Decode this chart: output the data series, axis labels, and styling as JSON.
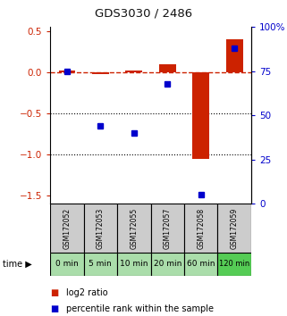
{
  "title": "GDS3030 / 2486",
  "samples": [
    "GSM172052",
    "GSM172053",
    "GSM172055",
    "GSM172057",
    "GSM172058",
    "GSM172059"
  ],
  "time_labels": [
    "0 min",
    "5 min",
    "10 min",
    "20 min",
    "60 min",
    "120 min"
  ],
  "log2_ratio": [
    0.02,
    -0.02,
    0.02,
    0.1,
    -1.05,
    0.4
  ],
  "percentile_rank": [
    75,
    44,
    40,
    68,
    5,
    88
  ],
  "left_ylim": [
    -1.6,
    0.55
  ],
  "right_ylim": [
    0,
    100
  ],
  "left_yticks": [
    0.5,
    0,
    -0.5,
    -1,
    -1.5
  ],
  "right_yticks": [
    100,
    75,
    50,
    25,
    0
  ],
  "hlines": [
    -0.5,
    -1.0
  ],
  "bar_color": "#cc2200",
  "dot_color": "#0000cc",
  "dashed_line_color": "#cc2200",
  "title_color": "#222222",
  "left_axis_color": "#cc2200",
  "right_axis_color": "#0000cc",
  "sample_box_color": "#cccccc",
  "time_box_colors": [
    "#aaddaa",
    "#aaddaa",
    "#aaddaa",
    "#aaddaa",
    "#aaddaa",
    "#55cc55"
  ],
  "legend_red": "log2 ratio",
  "legend_blue": "percentile rank within the sample",
  "bar_width": 0.5
}
